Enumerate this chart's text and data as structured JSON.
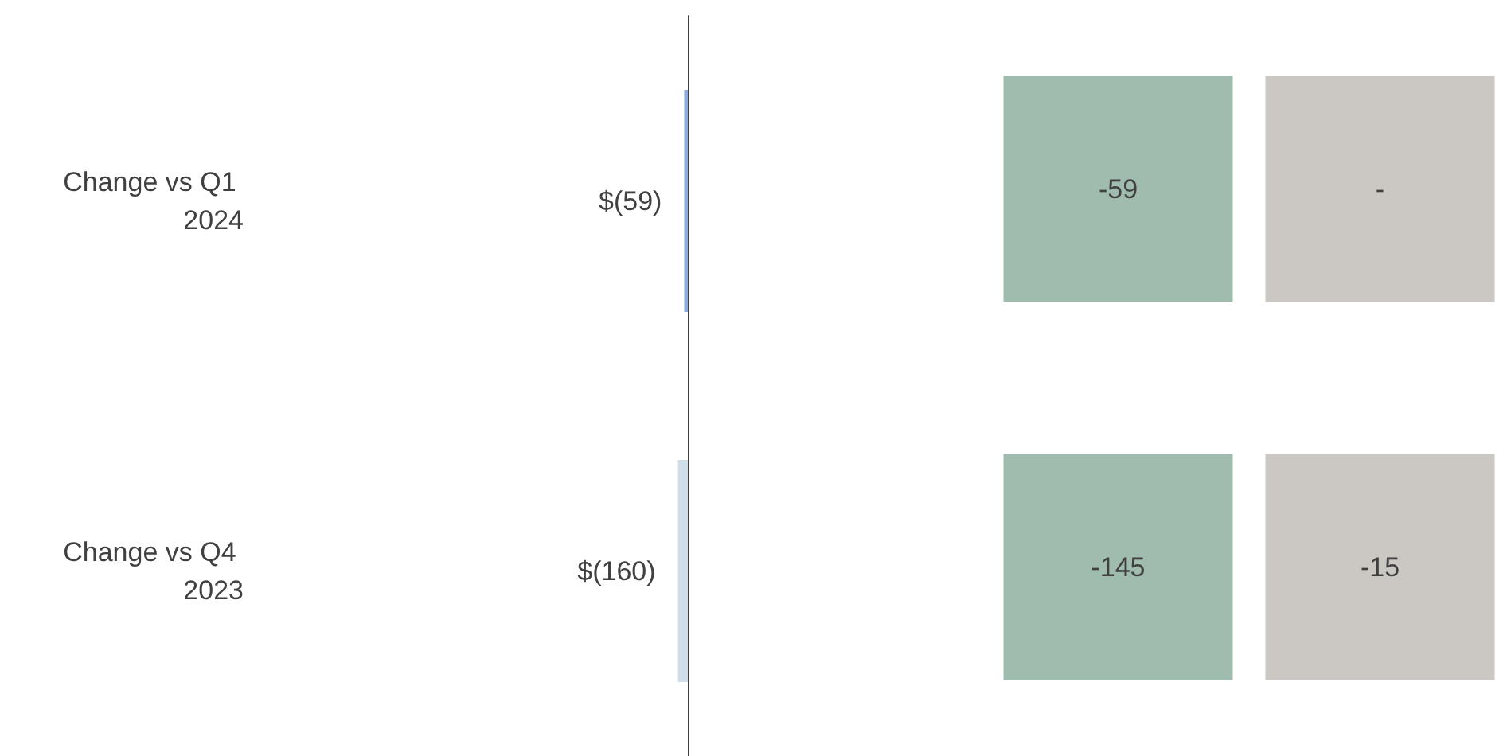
{
  "chart_data": [
    {
      "type": "bar",
      "orientation": "horizontal",
      "categories": [
        "Change vs Q1 2024",
        "Change vs Q4 2023"
      ],
      "values": [
        -59,
        -160
      ],
      "colors": [
        "#8faadc",
        "#d0dfe7"
      ],
      "value_labels": [
        "$(59)",
        "$(160)"
      ],
      "tick_labels": "y"
    },
    {
      "type": "other",
      "annotations": [
        "-59",
        "-",
        "-145",
        "-15"
      ],
      "colors": [
        "#9fbcae",
        "#cbc8c3",
        "#9fbcae",
        "#cbc8c3"
      ]
    }
  ]
}
